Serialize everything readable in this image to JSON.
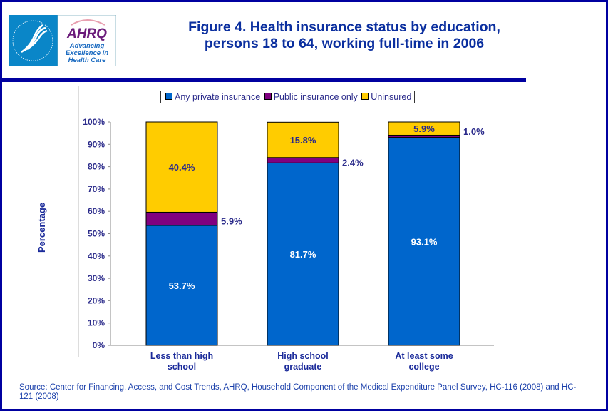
{
  "logo": {
    "hhs_text": "DEPARTMENT OF HEALTH & HUMAN SERVICES USA",
    "ahrq": "AHRQ",
    "tagline": [
      "Advancing",
      "Excellence in",
      "Health Care"
    ]
  },
  "title_lines": [
    "Figure 4. Health insurance status by education,",
    "persons 18 to 64, working full-time in 2006"
  ],
  "source": "Source: Center for Financing, Access, and Cost Trends, AHRQ, Household Component of the Medical Expenditure Panel Survey, HC-116 (2008) and HC-121 (2008)",
  "chart_data": {
    "type": "stacked-bar",
    "ylabel": "Percentage",
    "xlabel": "",
    "ylim": [
      0,
      100
    ],
    "yticks": [
      "0%",
      "10%",
      "20%",
      "30%",
      "40%",
      "50%",
      "60%",
      "70%",
      "80%",
      "90%",
      "100%"
    ],
    "categories": [
      [
        "Less than high",
        "school"
      ],
      [
        "High school",
        "graduate"
      ],
      [
        "At least some",
        "college"
      ]
    ],
    "legend_position": "top",
    "series": [
      {
        "name": "Any private insurance",
        "color": "#0066cc",
        "values": [
          53.7,
          81.7,
          93.1
        ],
        "labels": [
          "53.7%",
          "81.7%",
          "93.1%"
        ]
      },
      {
        "name": "Public insurance only",
        "color": "#800080",
        "values": [
          5.9,
          2.4,
          1.0
        ],
        "labels": [
          "5.9%",
          "2.4%",
          "1.0%"
        ]
      },
      {
        "name": "Uninsured",
        "color": "#ffcc00",
        "values": [
          40.4,
          15.8,
          5.9
        ],
        "labels": [
          "40.4%",
          "15.8%",
          "5.9%"
        ]
      }
    ]
  }
}
